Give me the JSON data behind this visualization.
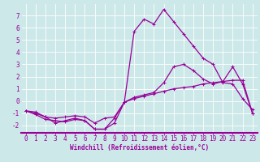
{
  "xlabel": "Windchill (Refroidissement éolien,°C)",
  "bg_color": "#cce8e8",
  "line_color": "#990099",
  "grid_color": "#ffffff",
  "xlim": [
    -0.5,
    23.5
  ],
  "ylim": [
    -2.6,
    8.0
  ],
  "yticks": [
    -2,
    -1,
    0,
    1,
    2,
    3,
    4,
    5,
    6,
    7
  ],
  "xticks": [
    0,
    1,
    2,
    3,
    4,
    5,
    6,
    7,
    8,
    9,
    10,
    11,
    12,
    13,
    14,
    15,
    16,
    17,
    18,
    19,
    20,
    21,
    22,
    23
  ],
  "line1_x": [
    0,
    1,
    2,
    3,
    4,
    5,
    6,
    7,
    8,
    9,
    10,
    11,
    12,
    13,
    14,
    15,
    16,
    17,
    18,
    19,
    20,
    21,
    22,
    23
  ],
  "line1_y": [
    -0.8,
    -1.1,
    -1.5,
    -1.6,
    -1.7,
    -1.5,
    -1.6,
    -2.3,
    -2.3,
    -1.4,
    -0.1,
    0.2,
    0.4,
    0.6,
    0.8,
    1.0,
    1.1,
    1.2,
    1.4,
    1.5,
    1.6,
    1.7,
    1.7,
    -1.0
  ],
  "line2_x": [
    0,
    1,
    2,
    3,
    4,
    5,
    6,
    7,
    8,
    9,
    10,
    11,
    12,
    13,
    14,
    15,
    16,
    17,
    18,
    19,
    20,
    21,
    22,
    23
  ],
  "line2_y": [
    -0.8,
    -0.9,
    -1.3,
    -1.4,
    -1.3,
    -1.2,
    -1.3,
    -1.8,
    -1.4,
    -1.3,
    -0.1,
    0.3,
    0.5,
    0.7,
    1.5,
    2.8,
    3.0,
    2.5,
    1.8,
    1.4,
    1.6,
    2.8,
    1.4,
    -1.0
  ],
  "line3_x": [
    0,
    1,
    2,
    3,
    4,
    5,
    6,
    7,
    8,
    9,
    10,
    11,
    12,
    13,
    14,
    15,
    16,
    17,
    18,
    19,
    20,
    21,
    22,
    23
  ],
  "line3_y": [
    -0.8,
    -1.0,
    -1.3,
    -1.8,
    -1.6,
    -1.4,
    -1.6,
    -2.3,
    -2.3,
    -1.8,
    -0.1,
    5.7,
    6.7,
    6.3,
    7.5,
    6.5,
    5.5,
    4.5,
    3.5,
    3.0,
    1.5,
    1.4,
    0.2,
    -0.7
  ],
  "tick_fontsize": 5.5,
  "xlabel_fontsize": 5.5,
  "marker_size": 3,
  "line_width": 0.9
}
